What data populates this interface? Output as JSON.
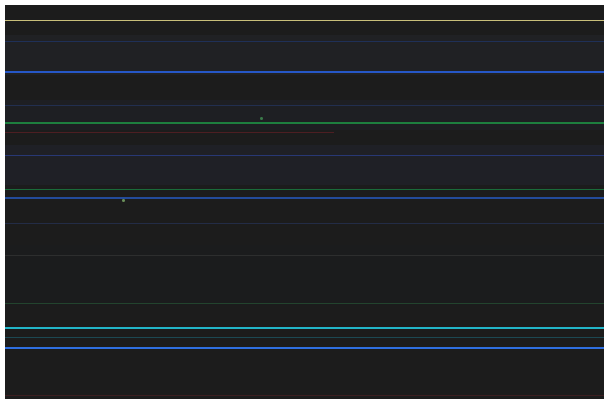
{
  "screen": {
    "background": "#1c1c1c"
  },
  "lines": [
    {
      "color": "#c9bf7a",
      "strength": "bright"
    },
    {
      "color": "#1f3a7a",
      "strength": "faint"
    },
    {
      "color": "#2657c7",
      "strength": "bright"
    },
    {
      "color": "#253a6e",
      "strength": "faint"
    },
    {
      "color": "#1e7f3f",
      "strength": "bright"
    },
    {
      "color": "#5a1f24",
      "strength": "faint"
    },
    {
      "color": "#2a3f8a",
      "strength": "medium"
    },
    {
      "color": "#1a6b3a",
      "strength": "medium"
    },
    {
      "color": "#2554b0",
      "strength": "medium"
    },
    {
      "color": "#2a3c70",
      "strength": "faint"
    },
    {
      "color": "#3a3a3a",
      "strength": "faint"
    },
    {
      "color": "#2a5f3a",
      "strength": "faint"
    },
    {
      "color": "#22b5c8",
      "strength": "bright"
    },
    {
      "color": "#2f6fe0",
      "strength": "bright"
    },
    {
      "color": "#4a1f22",
      "strength": "faint"
    }
  ]
}
